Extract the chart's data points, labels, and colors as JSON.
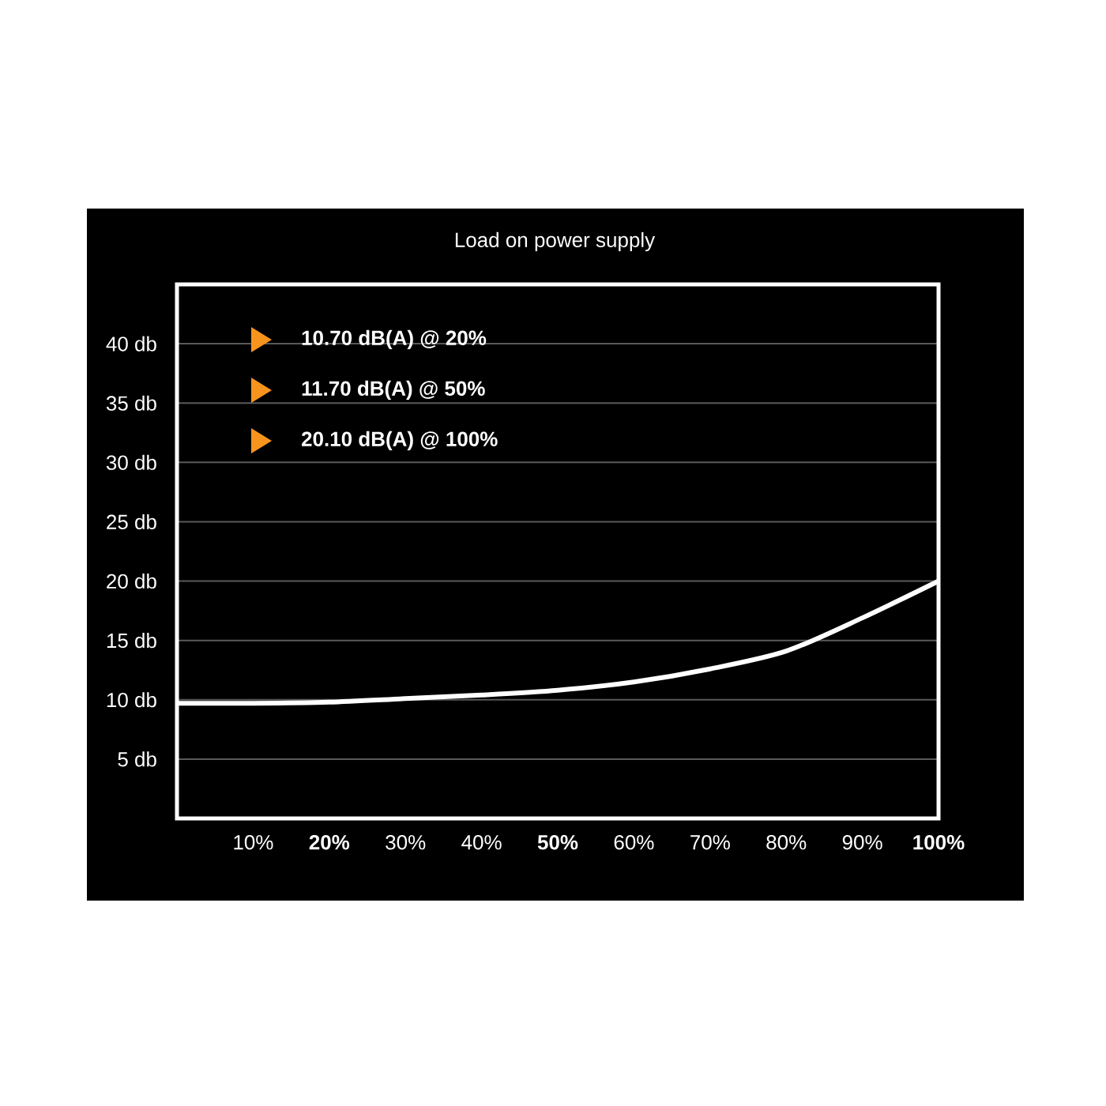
{
  "chart_data": {
    "type": "line",
    "title": "Load on power supply",
    "x": [
      0,
      10,
      20,
      30,
      40,
      50,
      60,
      70,
      80,
      90,
      100
    ],
    "values": [
      9.7,
      9.7,
      9.8,
      10.1,
      10.4,
      10.8,
      11.5,
      12.6,
      14.1,
      16.9,
      20.0
    ],
    "color": "#ffffff",
    "line_style": "solid",
    "grid": "y",
    "xlim": [
      0,
      100
    ],
    "ylim": [
      0,
      45
    ],
    "xticks": [
      {
        "value": 10,
        "label": "10%"
      },
      {
        "value": 20,
        "label": "**20%**"
      },
      {
        "value": 30,
        "label": "30%"
      },
      {
        "value": 40,
        "label": "40%"
      },
      {
        "value": 50,
        "label": "**50%**"
      },
      {
        "value": 60,
        "label": "60%"
      },
      {
        "value": 70,
        "label": "70%"
      },
      {
        "value": 80,
        "label": "80%"
      },
      {
        "value": 90,
        "label": "90%"
      },
      {
        "value": 100,
        "label": "**100%**"
      }
    ],
    "yticks": [
      {
        "value": 5,
        "label": "5 db"
      },
      {
        "value": 10,
        "label": "10 db"
      },
      {
        "value": 15,
        "label": "15 db"
      },
      {
        "value": 20,
        "label": "20 db"
      },
      {
        "value": 25,
        "label": "25 db"
      },
      {
        "value": 30,
        "label": "30 db"
      },
      {
        "value": 35,
        "label": "35 db"
      },
      {
        "value": 40,
        "label": "40 db"
      }
    ],
    "annotations": [
      "10.70 dB(A) @ 20%",
      "11.70 dB(A) @ 50%",
      "20.10 dB(A) @ 100%"
    ]
  }
}
